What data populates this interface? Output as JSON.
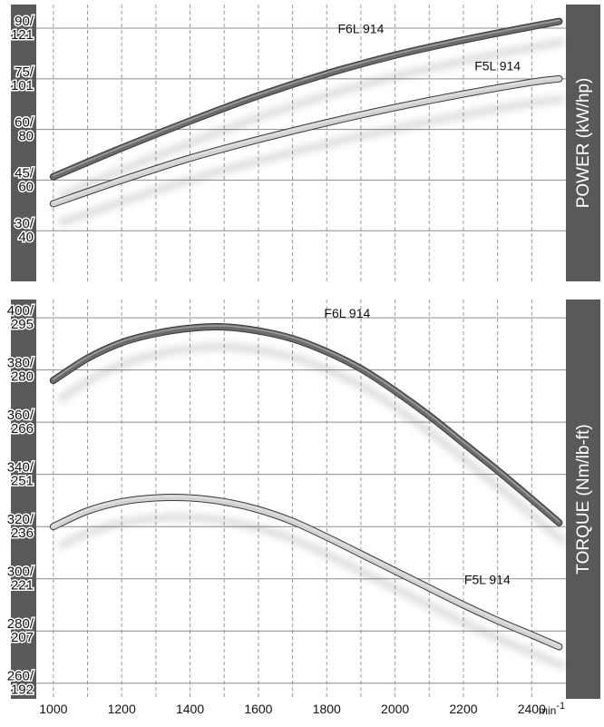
{
  "colors": {
    "frame": "#595959",
    "plot_bg": "#ffffff",
    "grid_solid": "#8c8c8c",
    "grid_dashed": "#9a9a9a",
    "f6l_line": "#6b6b6b",
    "f5l_line": "#d2d2d2",
    "side_text": "#ffffff",
    "axis_text": "#111111"
  },
  "chart_data": [
    {
      "type": "line",
      "panel": "top",
      "side_label": "POWER  (kW/hp)",
      "x_ticks": [
        1000,
        1200,
        1400,
        1600,
        1800,
        2000,
        2200,
        2400
      ],
      "xlim": [
        950,
        2500
      ],
      "y_ticks": [
        {
          "value": 30,
          "top": "30/",
          "bottom": "40"
        },
        {
          "value": 45,
          "top": "45/",
          "bottom": "60"
        },
        {
          "value": 60,
          "top": "60/",
          "bottom": "80"
        },
        {
          "value": 75,
          "top": "75/",
          "bottom": "101"
        },
        {
          "value": 90,
          "top": "90/",
          "bottom": "121"
        }
      ],
      "ylim": [
        15,
        97
      ],
      "grid": true,
      "series": [
        {
          "name": "F6L 914",
          "x": [
            1000,
            1200,
            1400,
            1600,
            1800,
            2000,
            2200,
            2400,
            2480
          ],
          "y": [
            46,
            54.5,
            62.5,
            70,
            76.5,
            82,
            86.5,
            90.5,
            92
          ]
        },
        {
          "name": "F5L 914",
          "x": [
            1000,
            1200,
            1400,
            1600,
            1800,
            2000,
            2200,
            2400,
            2480
          ],
          "y": [
            38,
            45,
            51.5,
            57,
            62,
            66.5,
            70.5,
            74,
            75
          ]
        }
      ]
    },
    {
      "type": "line",
      "panel": "bottom",
      "side_label": "TORQUE  (Nm/lb-ft)",
      "x_ticks": [
        1000,
        1200,
        1400,
        1600,
        1800,
        2000,
        2200,
        2400
      ],
      "x_unit": "min",
      "x_unit_sup": "-1",
      "xlim": [
        950,
        2500
      ],
      "y_ticks": [
        {
          "value": 260,
          "top": "260/",
          "bottom": "192"
        },
        {
          "value": 280,
          "top": "280/",
          "bottom": "207"
        },
        {
          "value": 300,
          "top": "300/",
          "bottom": "221"
        },
        {
          "value": 320,
          "top": "320/",
          "bottom": "236"
        },
        {
          "value": 340,
          "top": "340/",
          "bottom": "251"
        },
        {
          "value": 360,
          "top": "360/",
          "bottom": "266"
        },
        {
          "value": 380,
          "top": "380/",
          "bottom": "280"
        },
        {
          "value": 400,
          "top": "400/",
          "bottom": "295"
        }
      ],
      "ylim": [
        254,
        407
      ],
      "grid": true,
      "series": [
        {
          "name": "F6L 914",
          "x": [
            1000,
            1100,
            1200,
            1300,
            1400,
            1500,
            1600,
            1700,
            1800,
            1900,
            2000,
            2100,
            2200,
            2300,
            2400,
            2480
          ],
          "y": [
            376,
            384.5,
            390.5,
            394,
            396,
            396.5,
            395,
            392,
            387,
            380.5,
            372,
            362.5,
            352,
            341.5,
            330.5,
            321.5
          ]
        },
        {
          "name": "F5L 914",
          "x": [
            1000,
            1100,
            1200,
            1300,
            1400,
            1500,
            1600,
            1700,
            1800,
            1900,
            2000,
            2100,
            2200,
            2300,
            2400,
            2480
          ],
          "y": [
            320,
            326,
            329.5,
            331,
            331,
            329.5,
            326.5,
            322,
            316,
            309.5,
            303,
            296.5,
            290,
            284,
            278.5,
            274
          ]
        }
      ]
    }
  ]
}
